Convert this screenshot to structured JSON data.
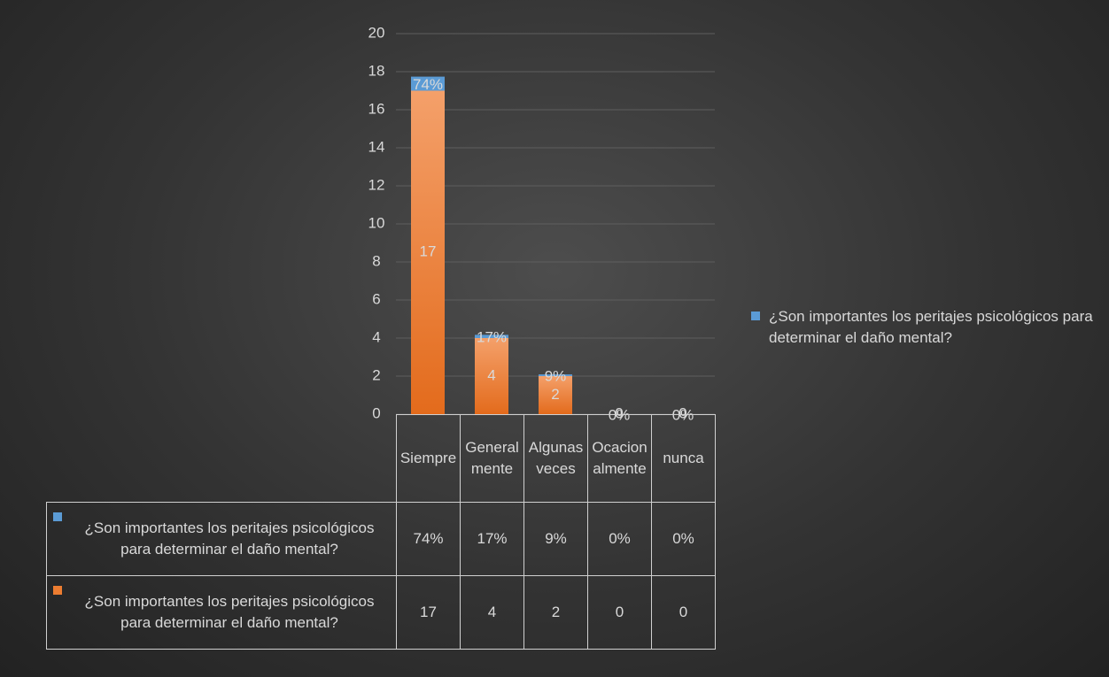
{
  "chart_data": {
    "type": "bar",
    "stacked": true,
    "categories": [
      "Siempre",
      "Generalmente",
      "Algunas veces",
      "Ocacionalmente",
      "nunca"
    ],
    "series": [
      {
        "name": "¿Son importantes los peritajes psicológicos para determinar el daño mental?",
        "color": "#5b9bd5",
        "values": [
          0.74,
          0.17,
          0.09,
          0,
          0
        ],
        "value_labels": [
          "74%",
          "17%",
          "9%",
          "0%",
          "0%"
        ]
      },
      {
        "name": "¿Son importantes los peritajes psicológicos para determinar el daño mental?",
        "color": "#ed7d31",
        "values": [
          17,
          4,
          2,
          0,
          0
        ]
      }
    ],
    "ylim": [
      0,
      20
    ],
    "yticks": [
      0,
      2,
      4,
      6,
      8,
      10,
      12,
      14,
      16,
      18,
      20
    ],
    "grid": true,
    "legend": "right",
    "data_table": true
  }
}
